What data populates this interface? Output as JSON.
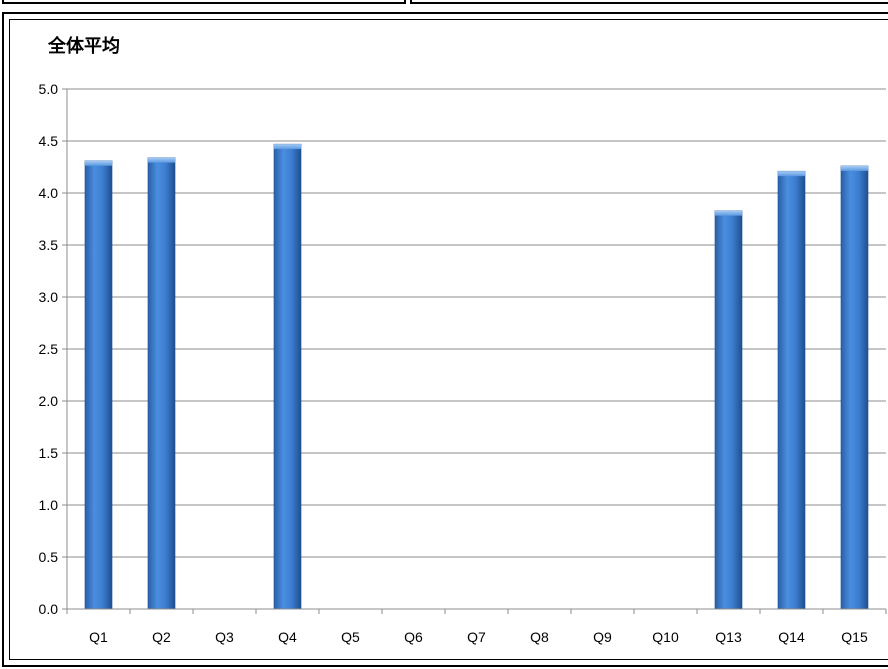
{
  "chart_data": {
    "type": "bar",
    "title": "全体平均",
    "xlabel": "",
    "ylabel": "",
    "categories": [
      "Q1",
      "Q2",
      "Q3",
      "Q4",
      "Q5",
      "Q6",
      "Q7",
      "Q8",
      "Q9",
      "Q10",
      "Q13",
      "Q14",
      "Q15"
    ],
    "values": [
      4.31,
      4.34,
      null,
      4.47,
      null,
      null,
      null,
      null,
      null,
      null,
      3.83,
      4.21,
      4.26
    ],
    "ylim": [
      0,
      5
    ],
    "yticks": [
      "0.0",
      "0.5",
      "1.0",
      "1.5",
      "2.0",
      "2.5",
      "3.0",
      "3.5",
      "4.0",
      "4.5",
      "5.0"
    ],
    "grid": true,
    "legend": "none",
    "bar_color": "#3f7fd0",
    "bar_edge_color": "#1f4f8f"
  }
}
